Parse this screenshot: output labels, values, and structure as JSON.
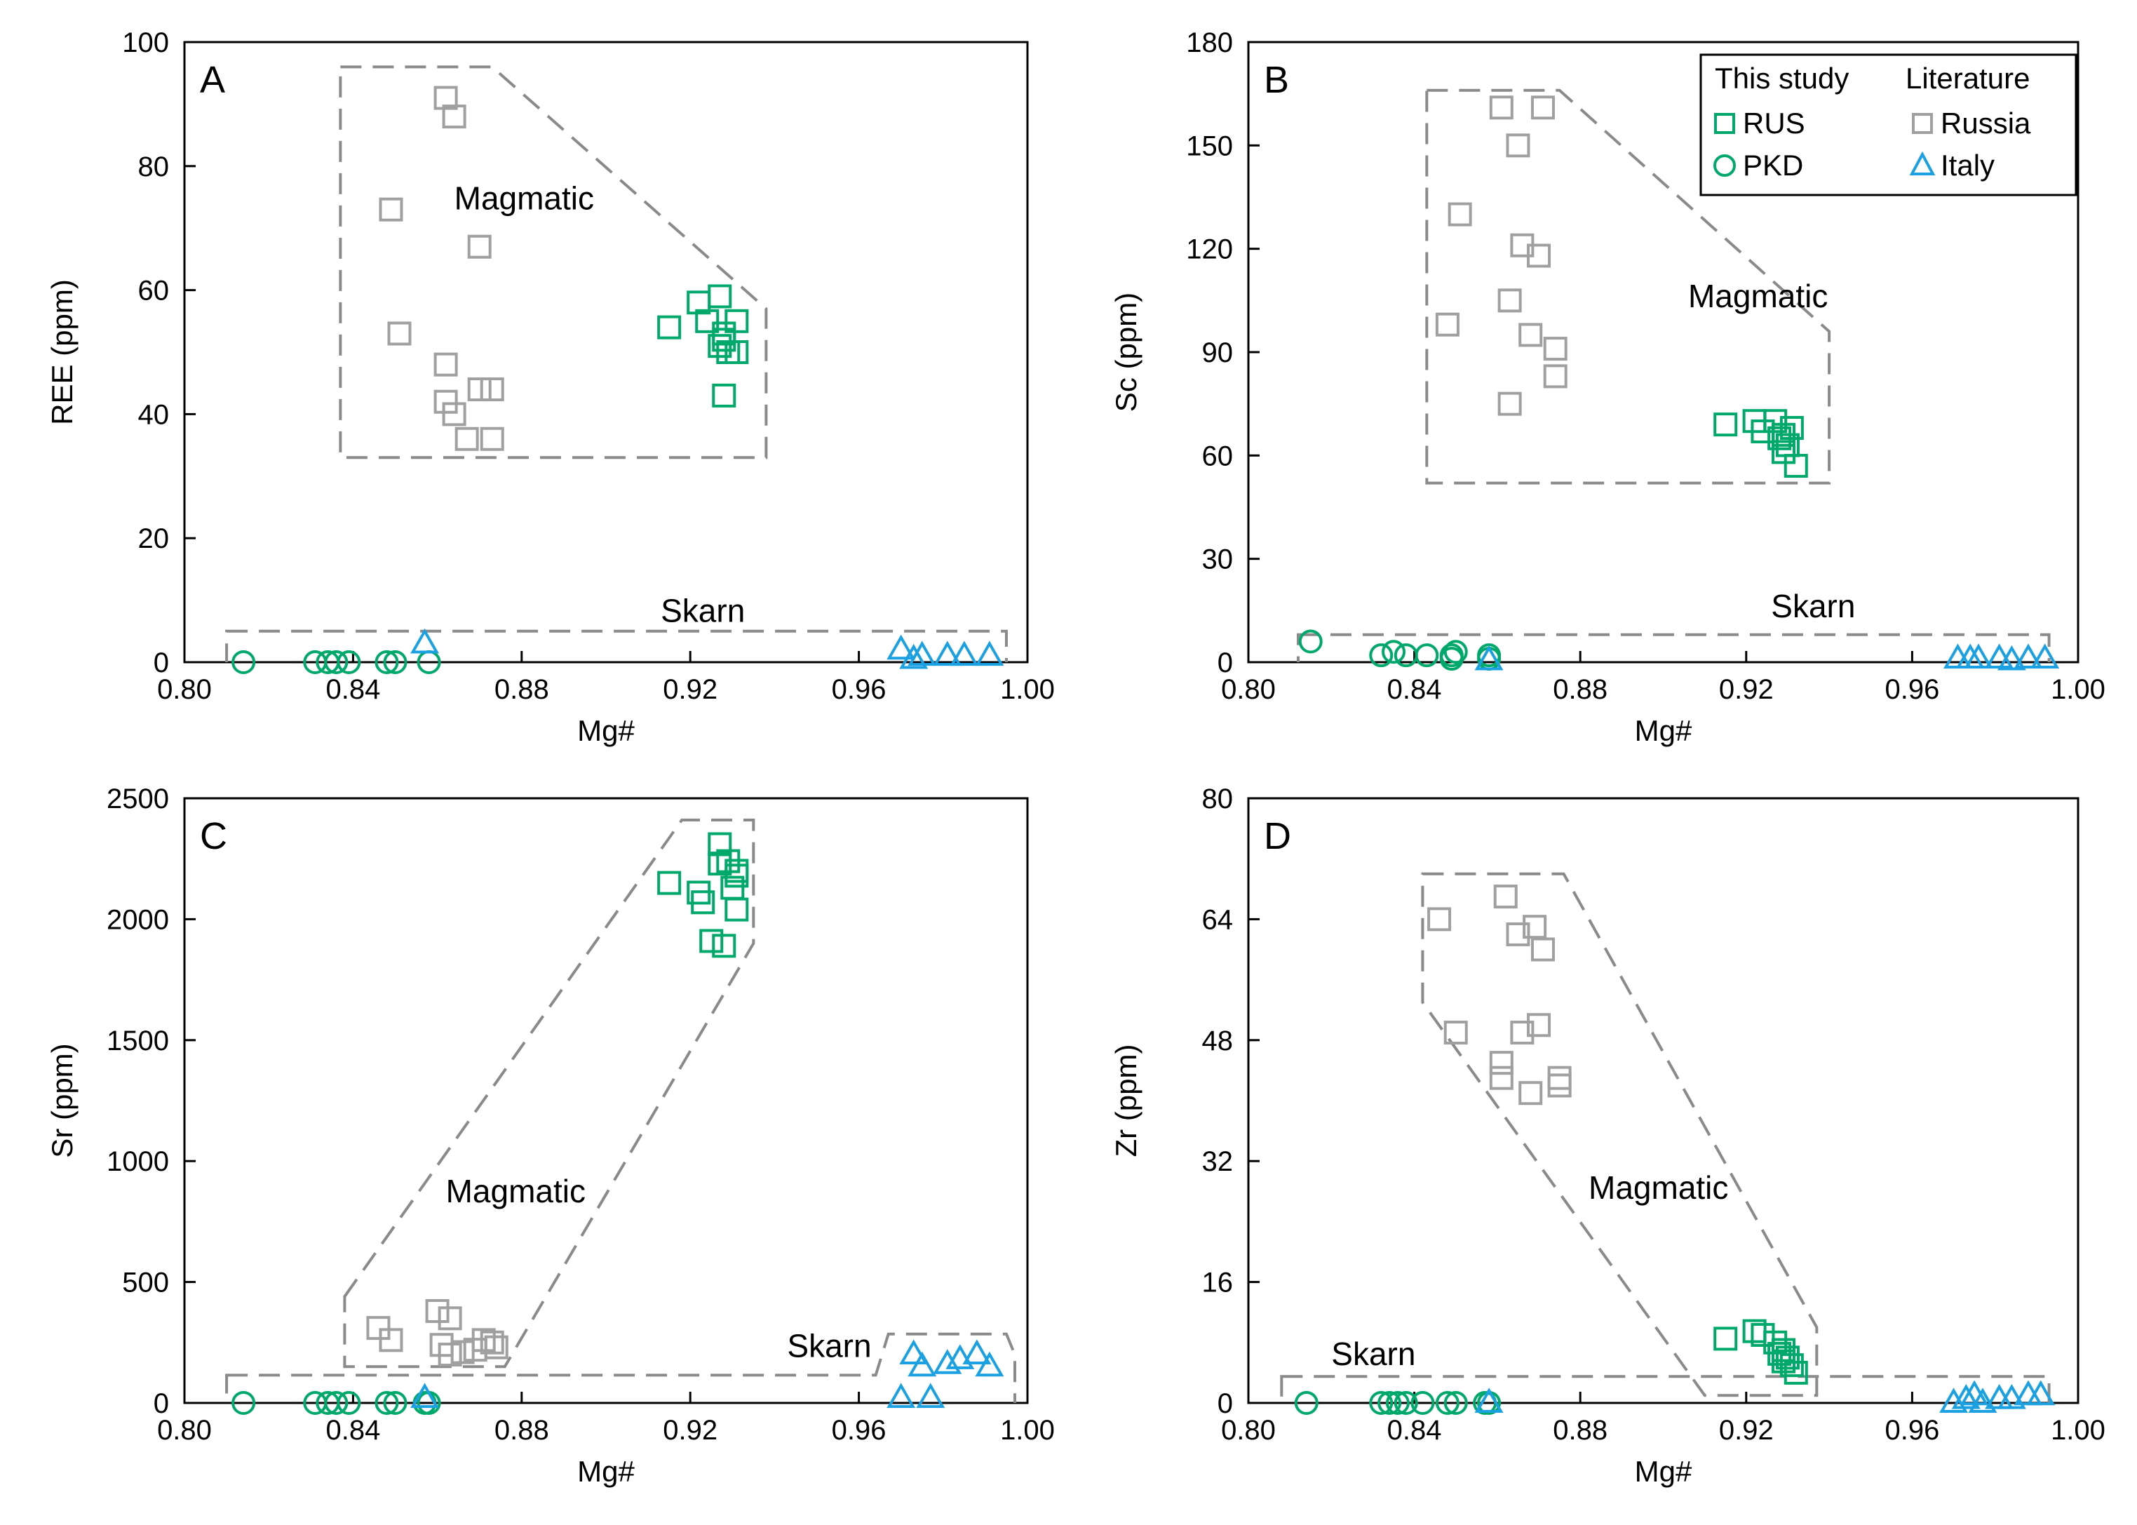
{
  "chart_data": [
    {
      "panel": "A",
      "type": "scatter",
      "xlabel": "Mg#",
      "ylabel": "REE (ppm)",
      "xlim": [
        0.8,
        1.0
      ],
      "ylim": [
        0,
        100
      ],
      "xticks": [
        "0.80",
        "0.84",
        "0.88",
        "0.92",
        "0.96",
        "1.00"
      ],
      "yticks": [
        "0",
        "20",
        "40",
        "60",
        "80",
        "100"
      ],
      "regions": [
        {
          "name": "Magmatic",
          "label": "Magmatic",
          "label_at": [
            0.864,
            73
          ],
          "polygon": [
            [
              0.837,
              96
            ],
            [
              0.873,
              96
            ],
            [
              0.938,
              57
            ],
            [
              0.938,
              33
            ],
            [
              0.837,
              33
            ]
          ]
        },
        {
          "name": "Skarn",
          "label": "Skarn",
          "label_at": [
            0.913,
            6.5
          ],
          "polygon": [
            [
              0.81,
              5
            ],
            [
              0.995,
              5
            ],
            [
              0.995,
              -2
            ],
            [
              0.81,
              -2
            ]
          ]
        }
      ],
      "series": [
        {
          "name": "RUS",
          "marker": "square",
          "color": "#00a86b",
          "x": [
            0.915,
            0.922,
            0.924,
            0.927,
            0.928,
            0.927,
            0.928,
            0.929,
            0.931,
            0.931,
            0.928
          ],
          "y": [
            54,
            58,
            55,
            59,
            53,
            51,
            52,
            50,
            55,
            50,
            43
          ]
        },
        {
          "name": "PKD",
          "marker": "circle",
          "color": "#00a86b",
          "x": [
            0.814,
            0.831,
            0.834,
            0.836,
            0.839,
            0.848,
            0.85,
            0.858
          ],
          "y": [
            0,
            0,
            0,
            0,
            0,
            0,
            0,
            0
          ]
        },
        {
          "name": "Russia",
          "marker": "square",
          "color": "#a0a0a0",
          "x": [
            0.862,
            0.864,
            0.849,
            0.87,
            0.851,
            0.862,
            0.862,
            0.864,
            0.87,
            0.873,
            0.867,
            0.873
          ],
          "y": [
            91,
            88,
            73,
            67,
            53,
            48,
            42,
            40,
            44,
            44,
            36,
            36
          ]
        },
        {
          "name": "Italy",
          "marker": "triangle",
          "color": "#1ba1e2",
          "x": [
            0.857,
            0.97,
            0.973,
            0.975,
            0.981,
            0.985,
            0.991
          ],
          "y": [
            3,
            2,
            0.5,
            1,
            1,
            1,
            1
          ]
        }
      ]
    },
    {
      "panel": "B",
      "type": "scatter",
      "xlabel": "Mg#",
      "ylabel": "Sc (ppm)",
      "xlim": [
        0.8,
        1.0
      ],
      "ylim": [
        0,
        180
      ],
      "xticks": [
        "0.80",
        "0.84",
        "0.88",
        "0.92",
        "0.96",
        "1.00"
      ],
      "yticks": [
        "0",
        "30",
        "60",
        "90",
        "120",
        "150",
        "180"
      ],
      "regions": [
        {
          "name": "Magmatic",
          "label": "Magmatic",
          "label_at": [
            0.906,
            103
          ],
          "polygon": [
            [
              0.843,
              166
            ],
            [
              0.875,
              166
            ],
            [
              0.94,
              96
            ],
            [
              0.94,
              52
            ],
            [
              0.843,
              52
            ]
          ]
        },
        {
          "name": "Skarn",
          "label": "Skarn",
          "label_at": [
            0.926,
            13
          ],
          "polygon": [
            [
              0.812,
              8
            ],
            [
              0.993,
              8
            ],
            [
              0.993,
              -5
            ],
            [
              0.812,
              -5
            ]
          ]
        }
      ],
      "series": [
        {
          "name": "RUS",
          "marker": "square",
          "color": "#00a86b",
          "x": [
            0.915,
            0.922,
            0.924,
            0.927,
            0.928,
            0.929,
            0.931,
            0.929,
            0.93,
            0.932
          ],
          "y": [
            69,
            70,
            67,
            70,
            65,
            66,
            68,
            61,
            63,
            57
          ]
        },
        {
          "name": "PKD",
          "marker": "circle",
          "color": "#00a86b",
          "x": [
            0.815,
            0.832,
            0.835,
            0.838,
            0.843,
            0.849,
            0.849,
            0.85,
            0.858,
            0.858
          ],
          "y": [
            6,
            2,
            3,
            2,
            2,
            1,
            2,
            3,
            1,
            2
          ]
        },
        {
          "name": "Russia",
          "marker": "square",
          "color": "#a0a0a0",
          "x": [
            0.861,
            0.871,
            0.865,
            0.851,
            0.866,
            0.87,
            0.863,
            0.848,
            0.868,
            0.874,
            0.874,
            0.863
          ],
          "y": [
            161,
            161,
            150,
            130,
            121,
            118,
            105,
            98,
            95,
            91,
            83,
            75
          ]
        },
        {
          "name": "Italy",
          "marker": "triangle",
          "color": "#1ba1e2",
          "x": [
            0.858,
            0.971,
            0.974,
            0.976,
            0.981,
            0.984,
            0.988,
            0.992
          ],
          "y": [
            0.5,
            1,
            1,
            1,
            1,
            0.5,
            1,
            1
          ]
        }
      ]
    },
    {
      "panel": "C",
      "type": "scatter",
      "xlabel": "Mg#",
      "ylabel": "Sr (ppm)",
      "xlim": [
        0.8,
        1.0
      ],
      "ylim": [
        0,
        2500
      ],
      "xticks": [
        "0.80",
        "0.84",
        "0.88",
        "0.92",
        "0.96",
        "1.00"
      ],
      "yticks": [
        "0",
        "500",
        "1000",
        "1500",
        "2000",
        "2500"
      ],
      "regions": [
        {
          "name": "Magmatic",
          "label": "Magmatic",
          "label_at": [
            0.862,
            830
          ],
          "polygon": [
            [
              0.838,
              440
            ],
            [
              0.918,
              2410
            ],
            [
              0.935,
              2410
            ],
            [
              0.935,
              1900
            ],
            [
              0.876,
              150
            ],
            [
              0.838,
              150
            ]
          ]
        },
        {
          "name": "Skarn",
          "label": "Skarn",
          "label_at": [
            0.943,
            190
          ],
          "polygon": [
            [
              0.81,
              115
            ],
            [
              0.964,
              115
            ],
            [
              0.967,
              285
            ],
            [
              0.995,
              285
            ],
            [
              0.997,
              200
            ],
            [
              0.997,
              -65
            ],
            [
              0.81,
              -65
            ]
          ]
        }
      ],
      "series": [
        {
          "name": "RUS",
          "marker": "square",
          "color": "#00a86b",
          "x": [
            0.915,
            0.922,
            0.923,
            0.925,
            0.927,
            0.927,
            0.928,
            0.929,
            0.93,
            0.931,
            0.931,
            0.931
          ],
          "y": [
            2150,
            2110,
            2070,
            1910,
            2230,
            2310,
            1890,
            2240,
            2130,
            2180,
            2200,
            2040
          ]
        },
        {
          "name": "PKD",
          "marker": "circle",
          "color": "#00a86b",
          "x": [
            0.814,
            0.831,
            0.834,
            0.836,
            0.839,
            0.848,
            0.85,
            0.857,
            0.858
          ],
          "y": [
            0,
            0,
            0,
            0,
            0,
            0,
            0,
            0,
            0
          ]
        },
        {
          "name": "Russia",
          "marker": "square",
          "color": "#a0a0a0",
          "x": [
            0.846,
            0.849,
            0.86,
            0.863,
            0.861,
            0.863,
            0.869,
            0.871,
            0.873,
            0.874,
            0.866
          ],
          "y": [
            310,
            260,
            380,
            350,
            240,
            200,
            220,
            260,
            250,
            230,
            210
          ]
        },
        {
          "name": "Italy",
          "marker": "triangle",
          "color": "#1ba1e2",
          "x": [
            0.857,
            0.97,
            0.973,
            0.975,
            0.977,
            0.981,
            0.984,
            0.988,
            0.991
          ],
          "y": [
            20,
            20,
            200,
            150,
            20,
            160,
            180,
            200,
            150
          ]
        }
      ]
    },
    {
      "panel": "D",
      "type": "scatter",
      "xlabel": "Mg#",
      "ylabel": "Zr (ppm)",
      "xlim": [
        0.8,
        1.0
      ],
      "ylim": [
        0,
        80
      ],
      "xticks": [
        "0.80",
        "0.84",
        "0.88",
        "0.92",
        "0.96",
        "1.00"
      ],
      "yticks": [
        "0",
        "16",
        "32",
        "48",
        "64",
        "80"
      ],
      "regions": [
        {
          "name": "Magmatic",
          "label": "Magmatic",
          "label_at": [
            0.882,
            27
          ],
          "polygon": [
            [
              0.842,
              70
            ],
            [
              0.876,
              70
            ],
            [
              0.937,
              10
            ],
            [
              0.937,
              1
            ],
            [
              0.91,
              1
            ],
            [
              0.842,
              53
            ]
          ]
        },
        {
          "name": "Skarn",
          "label": "Skarn",
          "label_at": [
            0.82,
            5
          ],
          "polygon": [
            [
              0.808,
              3.5
            ],
            [
              0.993,
              3.5
            ],
            [
              0.993,
              -3
            ],
            [
              0.808,
              -3
            ]
          ]
        }
      ],
      "series": [
        {
          "name": "RUS",
          "marker": "square",
          "color": "#00a86b",
          "x": [
            0.915,
            0.922,
            0.924,
            0.927,
            0.928,
            0.929,
            0.929,
            0.93,
            0.931,
            0.932
          ],
          "y": [
            8.5,
            9.5,
            9,
            8,
            6.5,
            5.5,
            7,
            6,
            5,
            4
          ]
        },
        {
          "name": "PKD",
          "marker": "circle",
          "color": "#00a86b",
          "x": [
            0.814,
            0.832,
            0.834,
            0.836,
            0.838,
            0.842,
            0.848,
            0.85,
            0.857,
            0.858
          ],
          "y": [
            0,
            0,
            0,
            0,
            0,
            0,
            0,
            0,
            0,
            0
          ]
        },
        {
          "name": "Russia",
          "marker": "square",
          "color": "#a0a0a0",
          "x": [
            0.862,
            0.869,
            0.865,
            0.871,
            0.846,
            0.866,
            0.87,
            0.85,
            0.861,
            0.861,
            0.875,
            0.875,
            0.868
          ],
          "y": [
            67,
            63,
            62,
            60,
            64,
            49,
            50,
            49,
            45,
            43,
            43,
            42,
            41
          ]
        },
        {
          "name": "Italy",
          "marker": "triangle",
          "color": "#1ba1e2",
          "x": [
            0.858,
            0.97,
            0.973,
            0.975,
            0.977,
            0.981,
            0.984,
            0.988,
            0.991
          ],
          "y": [
            0,
            0,
            0.5,
            1,
            0,
            0.5,
            0.5,
            1,
            1
          ]
        }
      ]
    }
  ],
  "legend": {
    "placement": "top-right",
    "panel": "B",
    "column_titles": [
      "This study",
      "Literature"
    ],
    "entries": [
      {
        "label": "RUS",
        "marker": "square",
        "color": "#00a86b"
      },
      {
        "label": "PKD",
        "marker": "circle",
        "color": "#00a86b"
      },
      {
        "label": "Russia",
        "marker": "square",
        "color": "#a0a0a0"
      },
      {
        "label": "Italy",
        "marker": "triangle",
        "color": "#1ba1e2"
      }
    ]
  }
}
